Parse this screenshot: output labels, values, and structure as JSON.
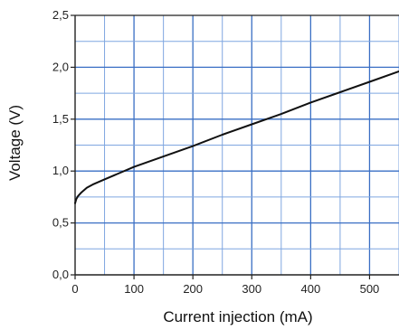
{
  "colors": {
    "grid_major": "#3a6fc4",
    "grid_minor": "#7fa6e0",
    "axis": "#222222",
    "curve": "#111111",
    "background": "#ffffff"
  },
  "chart_data": {
    "type": "line",
    "title": "",
    "xlabel": "Current injection (mA)",
    "ylabel": "Voltage (V)",
    "xlim": [
      0,
      550
    ],
    "ylim": [
      0,
      2.5
    ],
    "xticks": [
      0,
      100,
      200,
      300,
      400,
      500
    ],
    "xtick_labels": [
      "0",
      "100",
      "200",
      "300",
      "400",
      "500"
    ],
    "yticks": [
      0,
      0.5,
      1.0,
      1.5,
      2.0,
      2.5
    ],
    "ytick_labels": [
      "0,0",
      "0,5",
      "1,0",
      "1,5",
      "2,0",
      "2,5"
    ],
    "grid": true,
    "grid_x_step": 50,
    "grid_y_step": 0.25,
    "series": [
      {
        "name": "",
        "x": [
          0,
          2,
          5,
          10,
          20,
          30,
          50,
          75,
          100,
          150,
          200,
          250,
          300,
          350,
          400,
          450,
          500,
          550
        ],
        "y": [
          0.69,
          0.73,
          0.76,
          0.79,
          0.84,
          0.87,
          0.92,
          0.98,
          1.04,
          1.14,
          1.24,
          1.35,
          1.45,
          1.55,
          1.66,
          1.76,
          1.86,
          1.96
        ]
      }
    ]
  }
}
